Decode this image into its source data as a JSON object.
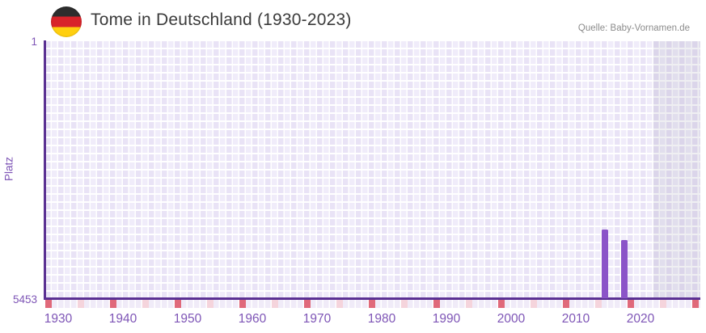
{
  "header": {
    "flag_icon": "german-flag-icon",
    "title": "Tome in Deutschland (1930-2023)",
    "source": "Quelle: Baby-Vornamen.de"
  },
  "chart_data": {
    "type": "bar",
    "title": "Tome in Deutschland (1930-2023)",
    "xlabel": "",
    "ylabel": "Platz",
    "y_axis": {
      "top_label": "1",
      "bottom_label": "5453",
      "min": 1,
      "max": 5453,
      "inverted": true
    },
    "x_axis": {
      "data_start_year": 1930,
      "data_end_year": 2023,
      "display_end_year": 2031,
      "tick_years": [
        1930,
        1940,
        1950,
        1960,
        1970,
        1980,
        1990,
        2000,
        2010,
        2020
      ]
    },
    "bars": [
      {
        "year": 2016,
        "platz": 4000
      },
      {
        "year": 2019,
        "platz": 4215
      }
    ],
    "axis_marks": {
      "decade_years": [
        1930,
        1940,
        1950,
        1960,
        1970,
        1980,
        1990,
        2000,
        2010,
        2020,
        2030
      ],
      "half_decade_years": [
        1935,
        1945,
        1955,
        1965,
        1975,
        1985,
        1995,
        2005,
        2015,
        2025
      ]
    },
    "future_region_start_year": 2024,
    "grid": true,
    "legend": false
  },
  "colors": {
    "bar": "#8b54c8",
    "axis_line": "#5b3193",
    "tick_label": "#7e55b6",
    "decade_mark": "#e0697a",
    "half_decade_mark": "#f5d4dc",
    "plot_background": "#ece7f8",
    "future_overlay": "rgba(100,95,130,0.10)",
    "flag_black": "#2d2d2d",
    "flag_red": "#d8232a",
    "flag_gold": "#ffcf0f",
    "title_text": "#3b3b3b",
    "source_text": "#8c8c8c"
  }
}
